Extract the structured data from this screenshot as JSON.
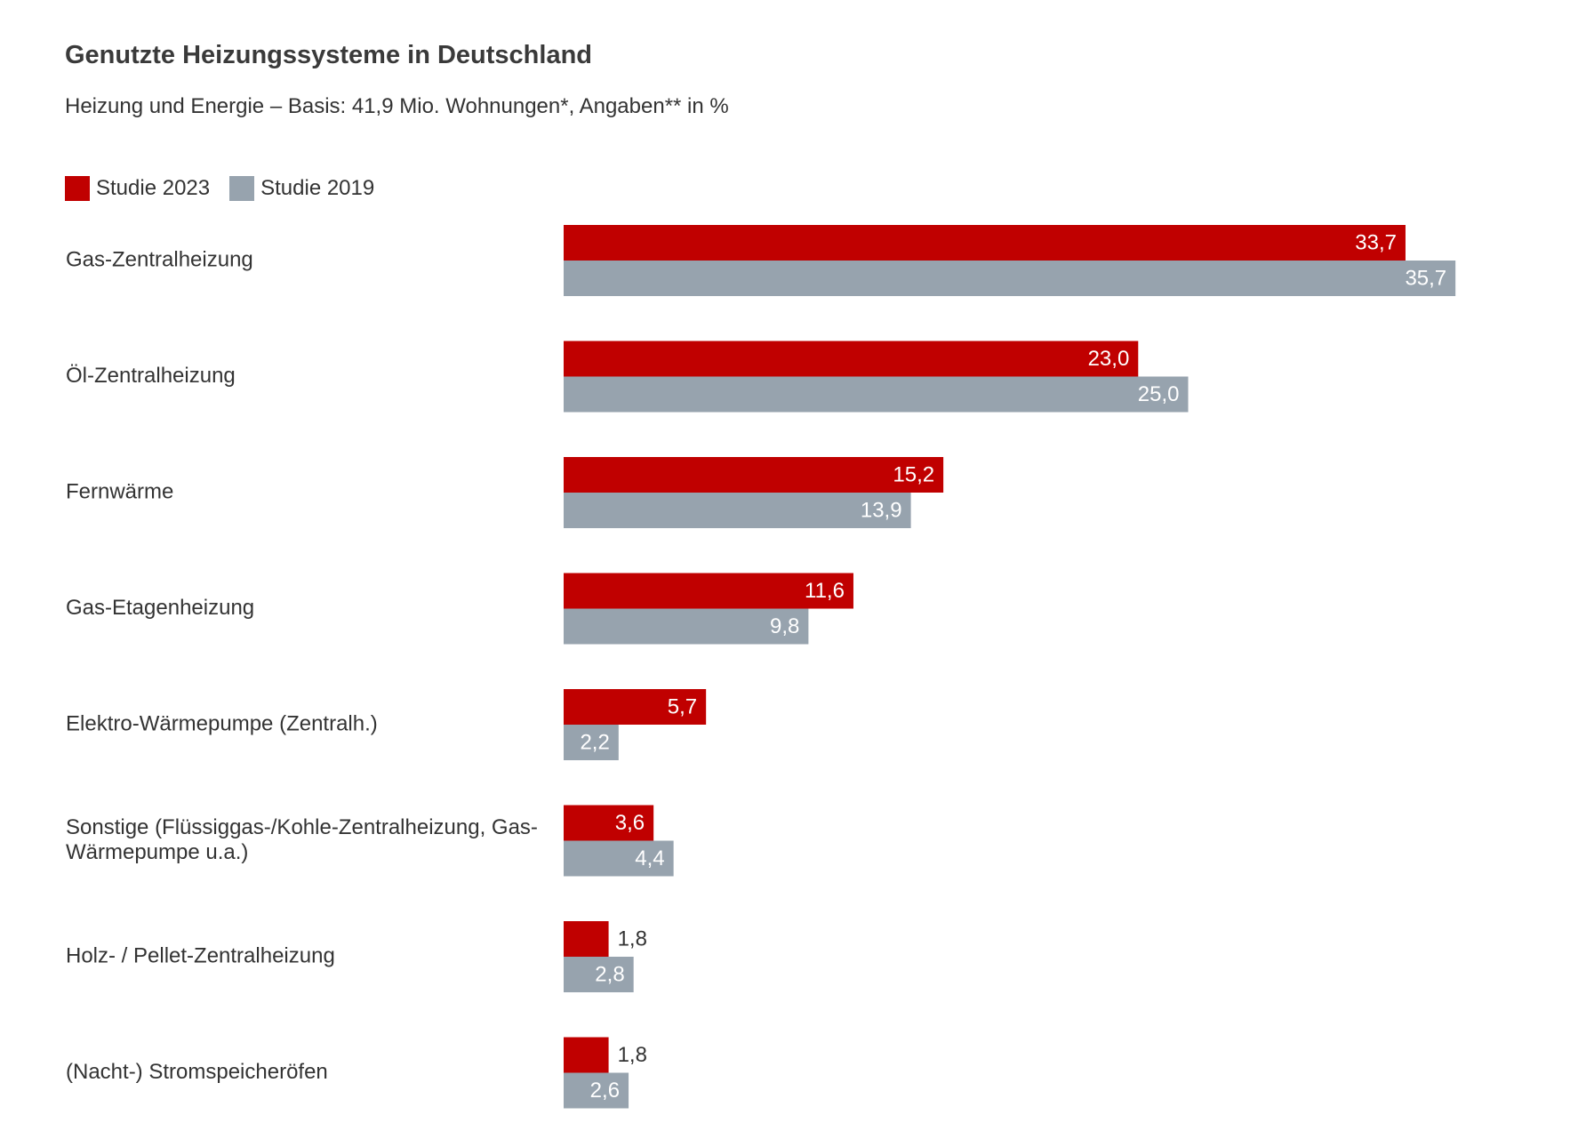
{
  "chart_data": {
    "type": "bar",
    "orientation": "horizontal",
    "title": "Genutzte Heizungssysteme in Deutschland",
    "subtitle": "Heizung und Energie – Basis: 41,9 Mio. Wohnungen*, Angaben** in %",
    "legend_position": "top-left",
    "grid": false,
    "xlim": [
      0,
      40
    ],
    "categories": [
      [
        "Gas-Zentralheizung"
      ],
      [
        "Öl-Zentralheizung"
      ],
      [
        "Fernwärme"
      ],
      [
        "Gas-Etagenheizung"
      ],
      [
        "Elektro-Wärmepumpe (Zentralh.)"
      ],
      [
        "Sonstige (Flüssiggas-/Kohle-Zentralheizung, Gas-",
        "Wärmepumpe u.a.)"
      ],
      [
        "Holz- / Pellet-Zentralheizung"
      ],
      [
        "(Nacht-) Stromspeicheröfen"
      ]
    ],
    "series": [
      {
        "name": "Studie 2023",
        "color": "#c00000",
        "values": [
          33.7,
          23.0,
          15.2,
          11.6,
          5.7,
          3.6,
          1.8,
          1.8
        ],
        "labels": [
          "33,7",
          "23,0",
          "15,2",
          "11,6",
          "5,7",
          "3,6",
          "1,8",
          "1,8"
        ]
      },
      {
        "name": "Studie 2019",
        "color": "#97a3ae",
        "values": [
          35.7,
          25.0,
          13.9,
          9.8,
          2.2,
          4.4,
          2.8,
          2.6
        ],
        "labels": [
          "35,7",
          "25,0",
          "13,9",
          "9,8",
          "2,2",
          "4,4",
          "2,8",
          "2,6"
        ]
      }
    ]
  }
}
